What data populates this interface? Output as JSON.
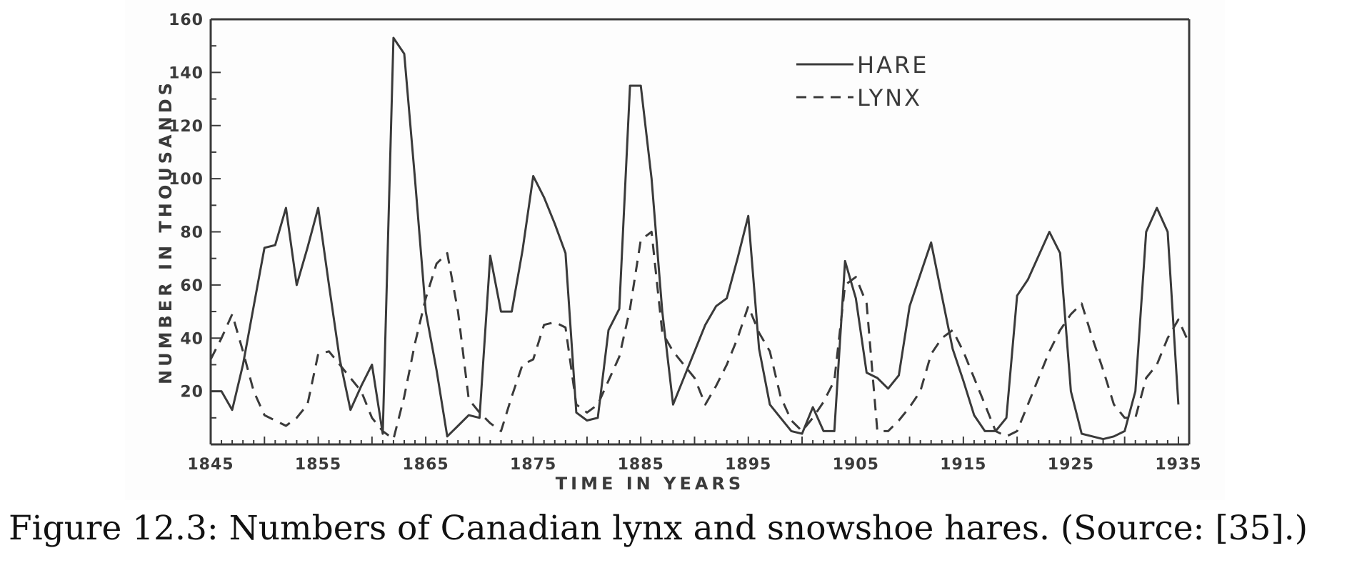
{
  "caption": "Figure 12.3: Numbers of Canadian lynx and snowshoe hares. (Source: [35].)",
  "chart_data": {
    "type": "line",
    "title": "",
    "xlabel": "TIME IN YEARS",
    "ylabel": "NUMBER IN THOUSANDS",
    "xlim": [
      1845,
      1936
    ],
    "ylim": [
      0,
      160
    ],
    "x_ticks": [
      "1845",
      "1855",
      "1865",
      "1875",
      "1885",
      "1895",
      "1905",
      "1915",
      "1925",
      "1935"
    ],
    "y_ticks": [
      "20",
      "40",
      "60",
      "80",
      "100",
      "120",
      "140",
      "160"
    ],
    "grid": false,
    "legend_position": "top-right",
    "series": [
      {
        "name": "HARE",
        "style": "solid",
        "color": "#3a3a3a",
        "x": [
          1845,
          1846,
          1847,
          1848,
          1849,
          1850,
          1851,
          1852,
          1853,
          1854,
          1855,
          1856,
          1857,
          1858,
          1859,
          1860,
          1861,
          1862,
          1863,
          1864,
          1865,
          1866,
          1867,
          1868,
          1869,
          1870,
          1871,
          1872,
          1873,
          1874,
          1875,
          1876,
          1877,
          1878,
          1879,
          1880,
          1881,
          1882,
          1883,
          1884,
          1885,
          1886,
          1887,
          1888,
          1889,
          1890,
          1891,
          1892,
          1893,
          1894,
          1895,
          1896,
          1897,
          1898,
          1899,
          1900,
          1901,
          1902,
          1903,
          1904,
          1905,
          1906,
          1907,
          1908,
          1909,
          1910,
          1911,
          1912,
          1913,
          1914,
          1915,
          1916,
          1917,
          1918,
          1919,
          1920,
          1921,
          1922,
          1923,
          1924,
          1925,
          1926,
          1927,
          1928,
          1929,
          1930,
          1931,
          1932,
          1933,
          1934,
          1935
        ],
        "values": [
          20,
          20,
          13,
          30,
          52,
          74,
          75,
          89,
          60,
          74,
          89,
          60,
          32,
          13,
          22,
          30,
          4,
          153,
          147,
          100,
          50,
          28,
          3,
          7,
          11,
          10,
          71,
          50,
          50,
          73,
          101,
          93,
          83,
          72,
          12,
          9,
          10,
          43,
          51,
          135,
          135,
          100,
          50,
          15,
          25,
          35,
          45,
          52,
          55,
          70,
          86,
          36,
          15,
          10,
          5,
          4,
          14,
          5,
          5,
          69,
          55,
          27,
          25,
          21,
          26,
          52,
          64,
          76,
          56,
          36,
          24,
          11,
          5,
          5,
          10,
          56,
          62,
          71,
          80,
          72,
          20,
          4,
          3,
          2,
          3,
          5,
          20,
          80,
          89,
          80,
          15
        ]
      },
      {
        "name": "LYNX",
        "style": "dashed",
        "color": "#3a3a3a",
        "x": [
          1845,
          1846,
          1847,
          1848,
          1849,
          1850,
          1851,
          1852,
          1853,
          1854,
          1855,
          1856,
          1857,
          1858,
          1859,
          1860,
          1861,
          1862,
          1863,
          1864,
          1865,
          1866,
          1867,
          1868,
          1869,
          1870,
          1871,
          1872,
          1873,
          1874,
          1875,
          1876,
          1877,
          1878,
          1879,
          1880,
          1881,
          1882,
          1883,
          1884,
          1885,
          1886,
          1887,
          1888,
          1889,
          1890,
          1891,
          1892,
          1893,
          1894,
          1895,
          1896,
          1897,
          1898,
          1899,
          1900,
          1901,
          1902,
          1903,
          1904,
          1905,
          1906,
          1907,
          1908,
          1909,
          1910,
          1911,
          1912,
          1913,
          1914,
          1915,
          1916,
          1917,
          1918,
          1919,
          1920,
          1921,
          1922,
          1923,
          1924,
          1925,
          1926,
          1927,
          1928,
          1929,
          1930,
          1931,
          1932,
          1933,
          1934,
          1935,
          1936
        ],
        "values": [
          32,
          40,
          49,
          35,
          20,
          11,
          9,
          7,
          10,
          15,
          34,
          35,
          30,
          25,
          20,
          10,
          5,
          2,
          18,
          38,
          55,
          68,
          72,
          50,
          17,
          12,
          8,
          5,
          18,
          30,
          32,
          45,
          46,
          44,
          15,
          12,
          15,
          24,
          33,
          51,
          77,
          80,
          42,
          35,
          30,
          25,
          15,
          22,
          30,
          40,
          52,
          42,
          35,
          18,
          9,
          5,
          10,
          16,
          24,
          60,
          63,
          53,
          5,
          5,
          9,
          14,
          20,
          34,
          40,
          43,
          35,
          25,
          15,
          5,
          3,
          5,
          15,
          25,
          35,
          43,
          49,
          53,
          40,
          28,
          15,
          10,
          10,
          25,
          30,
          40,
          47,
          38
        ]
      }
    ]
  }
}
